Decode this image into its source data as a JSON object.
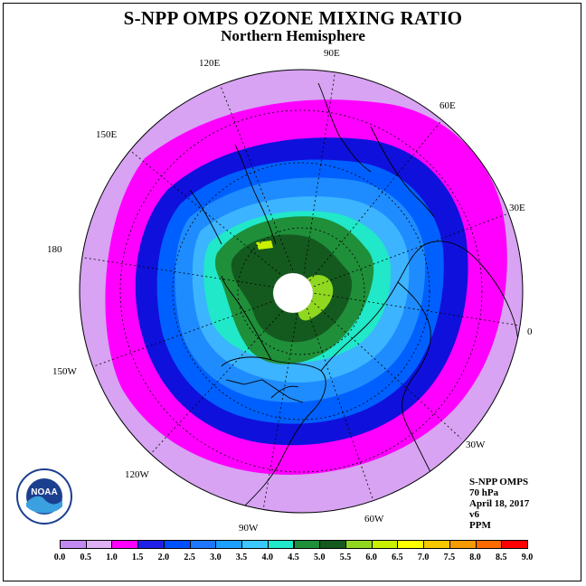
{
  "header": {
    "title": "S-NPP OMPS OZONE MIXING RATIO",
    "subtitle": "Northern Hemisphere"
  },
  "longitude_labels": [
    "0",
    "30E",
    "60E",
    "90E",
    "120E",
    "150E",
    "180",
    "150W",
    "120W",
    "90W",
    "60W",
    "30W"
  ],
  "info": {
    "instrument": "S-NPP OMPS",
    "pressure": "70 hPa",
    "date": "April 18, 2017",
    "version": "v6",
    "units": "PPM"
  },
  "colorbar": {
    "labels": [
      "0.0",
      "0.5",
      "1.0",
      "1.5",
      "2.0",
      "2.5",
      "3.0",
      "3.5",
      "4.0",
      "4.5",
      "5.0",
      "5.5",
      "6.0",
      "6.5",
      "7.0",
      "7.5",
      "8.0",
      "8.5",
      "9.0"
    ],
    "colors": [
      "#c28af0",
      "#e0b0f5",
      "#ff00ff",
      "#2020e6",
      "#0050ff",
      "#1e78ff",
      "#1ea0ff",
      "#3cc8ff",
      "#20e8c8",
      "#1f8f3a",
      "#145a1e",
      "#90d820",
      "#c8f000",
      "#ffff00",
      "#f5c800",
      "#f59a00",
      "#ff6a00",
      "#ff0000",
      "#8b5a3c"
    ]
  },
  "logo": {
    "text": "NOAA"
  }
}
